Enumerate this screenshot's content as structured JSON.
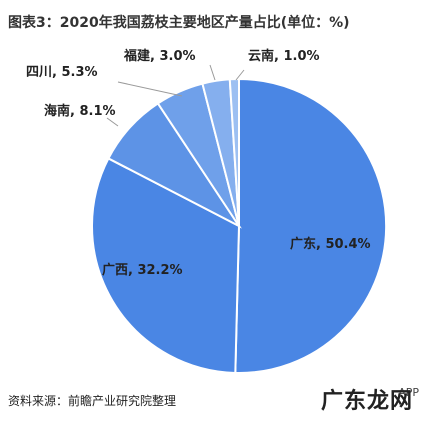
{
  "chart_data": {
    "type": "pie",
    "title": "图表3：2020年我国荔枝主要地区产量占比(单位：%)",
    "slices": [
      {
        "name": "广东",
        "value": 50.4,
        "label": "广东, 50.4%",
        "color": "#4a86e4"
      },
      {
        "name": "广西",
        "value": 32.2,
        "label": "广西, 32.2%",
        "color": "#4a86e4"
      },
      {
        "name": "海南",
        "value": 8.1,
        "label": "海南, 8.1%",
        "color": "#5d93e6"
      },
      {
        "name": "四川",
        "value": 5.3,
        "label": "四川, 5.3%",
        "color": "#6fa0ea"
      },
      {
        "name": "福建",
        "value": 3.0,
        "label": "福建, 3.0%",
        "color": "#85afee"
      },
      {
        "name": "云南",
        "value": 1.0,
        "label": "云南, 1.0%",
        "color": "#9dc0f2"
      }
    ]
  },
  "footer": {
    "source": "资料来源：前瞻产业研究院整理",
    "watermark_logo": "广东龙网",
    "watermark_tag": "APP"
  }
}
